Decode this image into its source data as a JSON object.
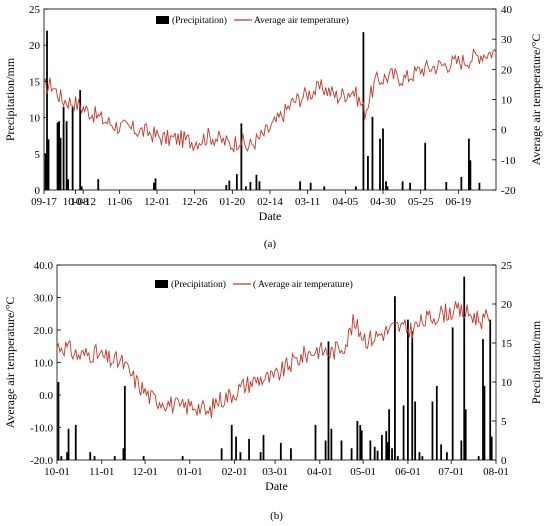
{
  "chart_data": [
    {
      "type": "bar+line",
      "caption": "(a)",
      "xlabel": "Date",
      "ylabel_left": "Precipitation/mm",
      "ylabel_right": "Average air temperature/°C",
      "left_axis_series": "Precipitation",
      "xlim": [
        0,
        300
      ],
      "x_ticks": [
        {
          "x": 0,
          "label": "09-17"
        },
        {
          "x": 21,
          "label": "10-08"
        },
        {
          "x": 26,
          "label": "10-12"
        },
        {
          "x": 50,
          "label": "11-06"
        },
        {
          "x": 75,
          "label": "12-01"
        },
        {
          "x": 100,
          "label": "12-26"
        },
        {
          "x": 125,
          "label": "01-20"
        },
        {
          "x": 150,
          "label": "02-14"
        },
        {
          "x": 175,
          "label": "03-11"
        },
        {
          "x": 200,
          "label": "04-05"
        },
        {
          "x": 225,
          "label": "04-30"
        },
        {
          "x": 250,
          "label": "05-25"
        },
        {
          "x": 275,
          "label": "06-19"
        }
      ],
      "precip_ylim": [
        0,
        25
      ],
      "precip_ticks": [
        0,
        5,
        10,
        15,
        20,
        25
      ],
      "temp_ylim": [
        -20,
        40
      ],
      "temp_ticks": [
        -20,
        -10,
        0,
        10,
        20,
        30,
        40
      ],
      "legend": {
        "bar": "(Precipitation)",
        "line": "Average air temperature)",
        "position": "top-center"
      },
      "precip_series": [
        [
          1,
          5
        ],
        [
          2,
          22
        ],
        [
          3,
          7
        ],
        [
          9,
          9.3
        ],
        [
          10,
          9.5
        ],
        [
          11,
          7.2
        ],
        [
          13,
          11.5
        ],
        [
          15,
          9.5
        ],
        [
          16,
          1.5
        ],
        [
          19,
          11.5
        ],
        [
          24,
          13.8
        ],
        [
          25,
          0.5
        ],
        [
          36,
          1.5
        ],
        [
          73,
          1
        ],
        [
          74,
          1.6
        ],
        [
          121,
          0.7
        ],
        [
          123,
          1.3
        ],
        [
          128,
          2.2
        ],
        [
          131,
          9.2
        ],
        [
          134,
          0.5
        ],
        [
          137,
          1.1
        ],
        [
          141,
          2.1
        ],
        [
          143,
          1.2
        ],
        [
          170,
          1.2
        ],
        [
          177,
          1
        ],
        [
          186,
          0.5
        ],
        [
          207,
          0.5
        ],
        [
          212,
          21.8
        ],
        [
          215,
          4.7
        ],
        [
          218,
          10.1
        ],
        [
          223,
          7.1
        ],
        [
          225,
          8.5
        ],
        [
          227,
          1.2
        ],
        [
          228,
          0.5
        ],
        [
          238,
          1.2
        ],
        [
          243,
          1
        ],
        [
          253,
          6.5
        ],
        [
          267,
          1.1
        ],
        [
          277,
          1.8
        ],
        [
          282,
          7.1
        ],
        [
          283,
          4.1
        ],
        [
          289,
          1
        ]
      ],
      "temp_anchors": [
        [
          0,
          14
        ],
        [
          5,
          15
        ],
        [
          12,
          10
        ],
        [
          20,
          9
        ],
        [
          30,
          6
        ],
        [
          40,
          3
        ],
        [
          50,
          1
        ],
        [
          60,
          0
        ],
        [
          70,
          -1
        ],
        [
          80,
          -3
        ],
        [
          90,
          -3
        ],
        [
          100,
          -4
        ],
        [
          110,
          -2
        ],
        [
          120,
          -4
        ],
        [
          125,
          -5
        ],
        [
          130,
          -3
        ],
        [
          135,
          -6
        ],
        [
          145,
          -2
        ],
        [
          155,
          3
        ],
        [
          165,
          9
        ],
        [
          175,
          12
        ],
        [
          185,
          14
        ],
        [
          195,
          11
        ],
        [
          205,
          13
        ],
        [
          210,
          9
        ],
        [
          213,
          6
        ],
        [
          220,
          16
        ],
        [
          230,
          18
        ],
        [
          240,
          17
        ],
        [
          250,
          20
        ],
        [
          260,
          21
        ],
        [
          270,
          22
        ],
        [
          280,
          23
        ],
        [
          290,
          25
        ],
        [
          300,
          26
        ]
      ]
    },
    {
      "type": "bar+line",
      "caption": "(b)",
      "xlabel": "Date",
      "ylabel_left": "Average air temperature/°C",
      "ylabel_right": "Precipitation/mm",
      "left_axis_series": "Temperature",
      "xlim": [
        0,
        304
      ],
      "x_ticks": [
        {
          "x": 0,
          "label": "10-01"
        },
        {
          "x": 31,
          "label": "11-01"
        },
        {
          "x": 61,
          "label": "12-01"
        },
        {
          "x": 92,
          "label": "01-01"
        },
        {
          "x": 123,
          "label": "02-01"
        },
        {
          "x": 151,
          "label": "03-01"
        },
        {
          "x": 182,
          "label": "04-01"
        },
        {
          "x": 212,
          "label": "05-01"
        },
        {
          "x": 243,
          "label": "06-01"
        },
        {
          "x": 273,
          "label": "07-01"
        },
        {
          "x": 304,
          "label": "08-01"
        }
      ],
      "temp_ylim": [
        -20,
        40
      ],
      "temp_ticks": [
        -20.0,
        -10.0,
        0.0,
        10.0,
        20.0,
        30.0,
        40.0
      ],
      "precip_ylim": [
        0,
        25
      ],
      "precip_ticks": [
        0,
        5,
        10,
        15,
        20,
        25
      ],
      "legend": {
        "bar": "(Precipitation)",
        "line": "( Average air temperature)",
        "position": "top-center"
      },
      "precip_series": [
        [
          1,
          10
        ],
        [
          3,
          0.5
        ],
        [
          7,
          1
        ],
        [
          8,
          4
        ],
        [
          13,
          4.5
        ],
        [
          23,
          1
        ],
        [
          26,
          0.5
        ],
        [
          40,
          0.5
        ],
        [
          46,
          1.5
        ],
        [
          47,
          9.5
        ],
        [
          60,
          0.5
        ],
        [
          87,
          0.5
        ],
        [
          114,
          1.5
        ],
        [
          121,
          4.5
        ],
        [
          124,
          3
        ],
        [
          127,
          1
        ],
        [
          133,
          2.7
        ],
        [
          141,
          1
        ],
        [
          143,
          3.2
        ],
        [
          155,
          2.2
        ],
        [
          162,
          1.5
        ],
        [
          179,
          4.5
        ],
        [
          186,
          2.5
        ],
        [
          188,
          15.2
        ],
        [
          190,
          4
        ],
        [
          197,
          2.5
        ],
        [
          204,
          1.5
        ],
        [
          208,
          5
        ],
        [
          210,
          4.5
        ],
        [
          211,
          3.8
        ],
        [
          217,
          2.5
        ],
        [
          220,
          1.7
        ],
        [
          222,
          1.2
        ],
        [
          225,
          3.2
        ],
        [
          228,
          3.7
        ],
        [
          229,
          2.3
        ],
        [
          230,
          6.5
        ],
        [
          232,
          1.5
        ],
        [
          234,
          21
        ],
        [
          236,
          0.5
        ],
        [
          240,
          7
        ],
        [
          243,
          18
        ],
        [
          246,
          16.5
        ],
        [
          248,
          7.5
        ],
        [
          251,
          1
        ],
        [
          253,
          0.5
        ],
        [
          260,
          7.5
        ],
        [
          263,
          9.5
        ],
        [
          266,
          2
        ],
        [
          270,
          1
        ],
        [
          274,
          17
        ],
        [
          280,
          2.5
        ],
        [
          282,
          23.5
        ],
        [
          283,
          6.5
        ],
        [
          292,
          0.5
        ],
        [
          295,
          15.5
        ],
        [
          296,
          9.5
        ],
        [
          300,
          18
        ],
        [
          301,
          3
        ]
      ],
      "temp_anchors": [
        [
          0,
          15
        ],
        [
          5,
          15
        ],
        [
          15,
          12
        ],
        [
          25,
          13
        ],
        [
          35,
          11
        ],
        [
          45,
          10
        ],
        [
          55,
          4
        ],
        [
          65,
          -1
        ],
        [
          75,
          -2
        ],
        [
          85,
          -4
        ],
        [
          95,
          -3
        ],
        [
          100,
          -4
        ],
        [
          105,
          -6
        ],
        [
          110,
          -2
        ],
        [
          120,
          0
        ],
        [
          130,
          3
        ],
        [
          140,
          5
        ],
        [
          150,
          5
        ],
        [
          160,
          9
        ],
        [
          170,
          12
        ],
        [
          180,
          14
        ],
        [
          190,
          13
        ],
        [
          200,
          16
        ],
        [
          205,
          22
        ],
        [
          215,
          17
        ],
        [
          225,
          19
        ],
        [
          235,
          21
        ],
        [
          245,
          20
        ],
        [
          255,
          23
        ],
        [
          265,
          25
        ],
        [
          275,
          26
        ],
        [
          285,
          25
        ],
        [
          295,
          23
        ],
        [
          300,
          24
        ]
      ]
    }
  ]
}
